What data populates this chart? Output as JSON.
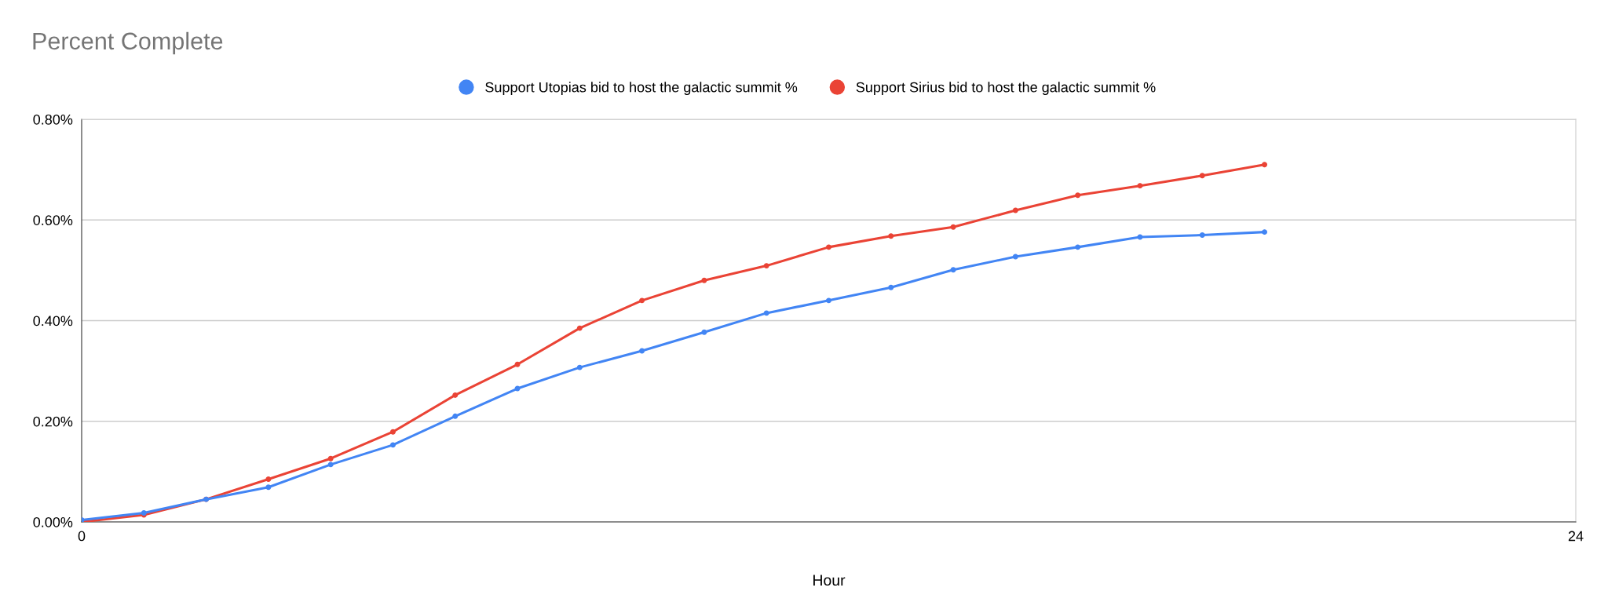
{
  "chart_data": {
    "type": "line",
    "title": "Percent Complete",
    "xlabel": "Hour",
    "x": [
      0,
      1,
      2,
      3,
      4,
      5,
      6,
      7,
      8,
      9,
      10,
      11,
      12,
      13,
      14,
      15,
      16,
      17,
      18,
      19
    ],
    "series": [
      {
        "name": "Support Utopias bid to host the galactic summit %",
        "color": "#4285f4",
        "values": [
          0.004,
          0.018,
          0.045,
          0.069,
          0.114,
          0.153,
          0.21,
          0.265,
          0.307,
          0.34,
          0.377,
          0.415,
          0.44,
          0.466,
          0.501,
          0.527,
          0.546,
          0.566,
          0.57,
          0.576
        ]
      },
      {
        "name": "Support Sirius bid to host the galactic summit %",
        "color": "#ea4335",
        "values": [
          0.0,
          0.014,
          0.045,
          0.085,
          0.126,
          0.179,
          0.252,
          0.313,
          0.385,
          0.44,
          0.48,
          0.509,
          0.546,
          0.568,
          0.586,
          0.619,
          0.649,
          0.668,
          0.688,
          0.71
        ]
      }
    ],
    "xlim": [
      0,
      24
    ],
    "xticks": [
      0,
      24
    ],
    "ylim": [
      0,
      0.8
    ],
    "yticks": [
      {
        "value": 0,
        "label": "0.00%"
      },
      {
        "value": 0.2,
        "label": "0.20%"
      },
      {
        "value": 0.4,
        "label": "0.40%"
      },
      {
        "value": 0.6,
        "label": "0.60%"
      },
      {
        "value": 0.8,
        "label": "0.80%"
      }
    ],
    "grid": "y",
    "legend": "top",
    "marker": "circle",
    "line_style": "solid"
  }
}
